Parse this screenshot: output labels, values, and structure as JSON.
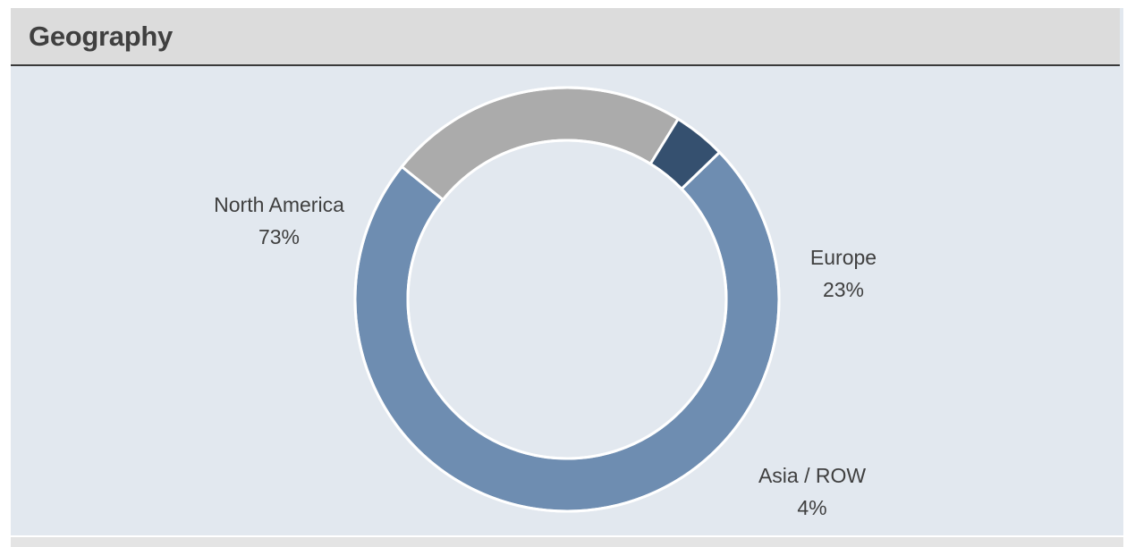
{
  "panel": {
    "title": "Geography"
  },
  "colors": {
    "header_bg": "#dcdcdc",
    "panel_bg": "#e2e8ef",
    "north_america": "#6e8db1",
    "europe": "#ababab",
    "asia_row": "#35506f"
  },
  "chart_data": {
    "type": "pie",
    "variant": "donut",
    "title": "Geography",
    "slices": [
      {
        "label": "North America",
        "value": 73,
        "display": "73%",
        "color": "#6e8db1"
      },
      {
        "label": "Europe",
        "value": 23,
        "display": "23%",
        "color": "#ababab"
      },
      {
        "label": "Asia / ROW",
        "value": 4,
        "display": "4%",
        "color": "#35506f"
      }
    ],
    "legend": "none",
    "labels": "outside-slices"
  }
}
